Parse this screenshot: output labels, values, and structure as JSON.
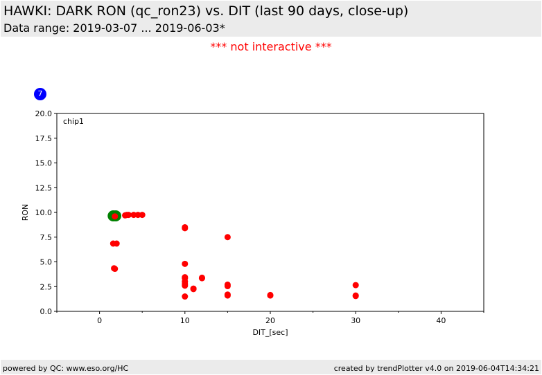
{
  "header": {
    "title": "HAWKI: DARK RON (qc_ron23) vs. DIT (last 90 days, close-up)",
    "subtitle": "Data range: 2019-03-07 ... 2019-06-03*"
  },
  "notice": "*** not interactive ***",
  "badge": "7",
  "footer": {
    "left": "powered by QC: www.eso.org/HC",
    "right": "created by trendPlotter v4.0 on 2019-06-04T14:34:21"
  },
  "colors": {
    "points": "#ff0000",
    "highlight": "#008000",
    "badge": "#0000ff",
    "notice": "#ff0000"
  },
  "chart_data": {
    "type": "scatter",
    "panel_label": "chip1",
    "xlabel": "DIT_[sec]",
    "ylabel": "RON",
    "xlim": [
      -5,
      45
    ],
    "ylim": [
      0,
      20
    ],
    "x_ticks": [
      0,
      10,
      20,
      30,
      40
    ],
    "x_minor_ticks": [
      -5,
      5,
      15,
      25,
      35,
      45
    ],
    "y_ticks": [
      0.0,
      2.5,
      5.0,
      7.5,
      10.0,
      12.5,
      15.0,
      17.5,
      20.0
    ],
    "grid": false,
    "highlight_points": [
      {
        "x": 1.6,
        "y": 9.65
      },
      {
        "x": 1.9,
        "y": 9.65
      }
    ],
    "series": [
      {
        "points": [
          {
            "x": 1.8,
            "y": 9.6
          },
          {
            "x": 3.0,
            "y": 9.7
          },
          {
            "x": 3.2,
            "y": 9.75
          },
          {
            "x": 3.4,
            "y": 9.75
          },
          {
            "x": 4.0,
            "y": 9.75
          },
          {
            "x": 4.5,
            "y": 9.75
          },
          {
            "x": 5.0,
            "y": 9.75
          },
          {
            "x": 1.6,
            "y": 6.85
          },
          {
            "x": 2.0,
            "y": 6.85
          },
          {
            "x": 1.7,
            "y": 4.35
          },
          {
            "x": 1.8,
            "y": 4.3
          },
          {
            "x": 10.0,
            "y": 8.5
          },
          {
            "x": 10.0,
            "y": 8.4
          },
          {
            "x": 10.0,
            "y": 4.8
          },
          {
            "x": 10.0,
            "y": 3.45
          },
          {
            "x": 10.0,
            "y": 3.35
          },
          {
            "x": 10.0,
            "y": 3.0
          },
          {
            "x": 10.0,
            "y": 2.75
          },
          {
            "x": 10.0,
            "y": 2.6
          },
          {
            "x": 10.0,
            "y": 1.5
          },
          {
            "x": 11.0,
            "y": 2.3
          },
          {
            "x": 11.0,
            "y": 2.25
          },
          {
            "x": 12.0,
            "y": 3.4
          },
          {
            "x": 12.0,
            "y": 3.35
          },
          {
            "x": 15.0,
            "y": 7.5
          },
          {
            "x": 15.0,
            "y": 2.7
          },
          {
            "x": 15.0,
            "y": 2.55
          },
          {
            "x": 15.0,
            "y": 1.7
          },
          {
            "x": 15.0,
            "y": 1.6
          },
          {
            "x": 20.0,
            "y": 1.65
          },
          {
            "x": 20.0,
            "y": 1.6
          },
          {
            "x": 30.0,
            "y": 2.65
          },
          {
            "x": 30.0,
            "y": 1.6
          },
          {
            "x": 30.0,
            "y": 1.55
          }
        ]
      }
    ]
  }
}
